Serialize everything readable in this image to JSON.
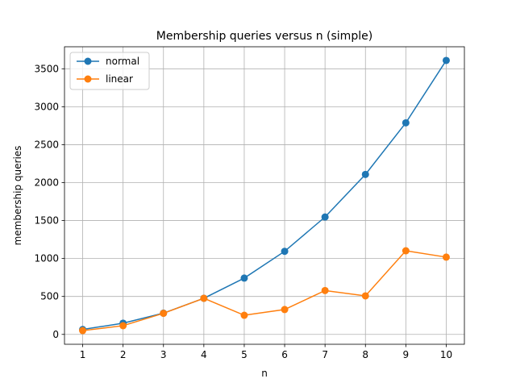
{
  "chart_data": {
    "type": "line",
    "title": "Membership queries versus n (simple)",
    "xlabel": "n",
    "ylabel": "membership queries",
    "x": [
      1,
      2,
      3,
      4,
      5,
      6,
      7,
      8,
      9,
      10
    ],
    "xticks": [
      1,
      2,
      3,
      4,
      5,
      6,
      7,
      8,
      9,
      10
    ],
    "yticks": [
      0,
      500,
      1000,
      1500,
      2000,
      2500,
      3000,
      3500
    ],
    "xlim": [
      0.55,
      10.45
    ],
    "ylim": [
      -130,
      3790
    ],
    "grid": true,
    "legend": "top-left",
    "series": [
      {
        "name": "normal",
        "color": "#1f77b4",
        "values": [
          65,
          148,
          280,
          476,
          742,
          1095,
          1547,
          2108,
          2788,
          3610
        ]
      },
      {
        "name": "linear",
        "color": "#ff7f0e",
        "values": [
          50,
          115,
          278,
          476,
          252,
          328,
          578,
          508,
          1102,
          1018
        ]
      }
    ]
  }
}
